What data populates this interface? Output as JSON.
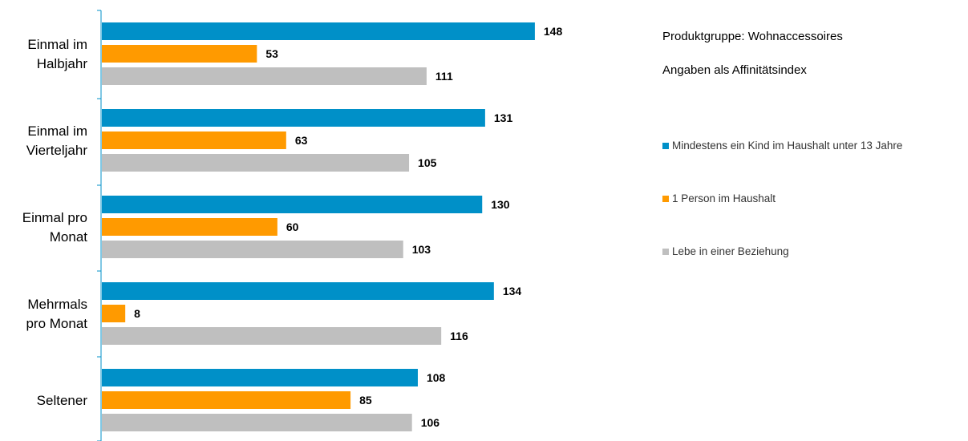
{
  "chart_data": {
    "type": "bar",
    "orientation": "horizontal",
    "categories": [
      [
        "Einmal im",
        "Halbjahr"
      ],
      [
        "Einmal im",
        "Vierteljahr"
      ],
      [
        "Einmal pro",
        "Monat"
      ],
      [
        "Mehrmals",
        "pro Monat"
      ],
      [
        "Seltener"
      ]
    ],
    "series": [
      {
        "name": "Mindestens ein Kind im Haushalt unter 13 Jahre",
        "color": "#0090C8",
        "values": [
          148,
          131,
          130,
          134,
          108
        ]
      },
      {
        "name": "1 Person im Haushalt",
        "color": "#FF9A00",
        "values": [
          53,
          63,
          60,
          8,
          85
        ]
      },
      {
        "name": "Lebe in einer Beziehung",
        "color": "#BFBFBF",
        "values": [
          111,
          105,
          103,
          116,
          106
        ]
      }
    ],
    "annotations": [
      "Produktgruppe: Wohnaccessoires",
      "Angaben als Affinitätsindex"
    ],
    "grid": false,
    "legend_position": "right"
  }
}
